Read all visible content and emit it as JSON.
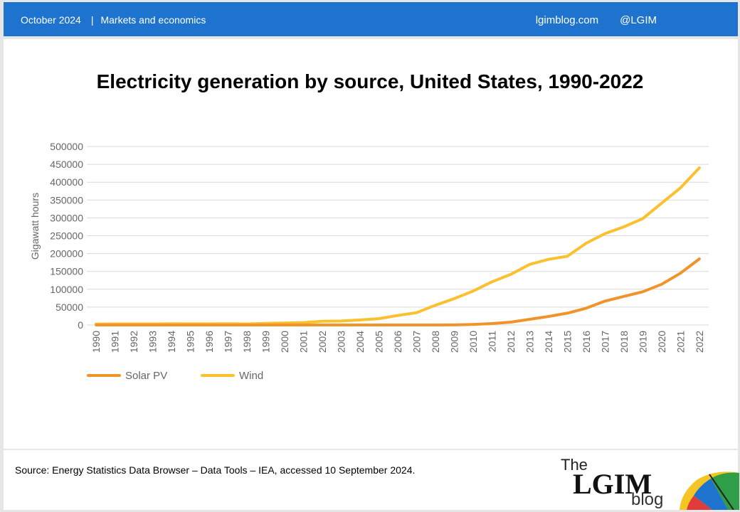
{
  "header": {
    "date": "October 2024",
    "separator": "|",
    "category": "Markets and economics",
    "site": "lgimblog.com",
    "handle": "@LGIM"
  },
  "colors": {
    "header_bg": "#1e73cf",
    "solar": "#f0932b",
    "wind": "#fbc02d",
    "grid": "#d9d9d9",
    "tick_text": "#666666"
  },
  "chart_data": {
    "type": "line",
    "title": "Electricity generation by source, United States, 1990-2022",
    "ylabel": "Gigawatt hours",
    "xlabel": "",
    "ylim": [
      0,
      500000
    ],
    "yticks": [
      0,
      50000,
      100000,
      150000,
      200000,
      250000,
      300000,
      350000,
      400000,
      450000,
      500000
    ],
    "grid": true,
    "legend_position": "bottom-left",
    "categories": [
      "1990",
      "1991",
      "1992",
      "1993",
      "1994",
      "1995",
      "1996",
      "1997",
      "1998",
      "1999",
      "2000",
      "2001",
      "2002",
      "2003",
      "2004",
      "2005",
      "2006",
      "2007",
      "2008",
      "2009",
      "2010",
      "2011",
      "2012",
      "2013",
      "2014",
      "2015",
      "2016",
      "2017",
      "2018",
      "2019",
      "2020",
      "2021",
      "2022"
    ],
    "series": [
      {
        "name": "Solar PV",
        "values": [
          0,
          0,
          0,
          0,
          0,
          0,
          0,
          0,
          0,
          0,
          0,
          0,
          0,
          0,
          0,
          0,
          0,
          0,
          0,
          100,
          1500,
          4000,
          8000,
          16000,
          24000,
          33000,
          47000,
          67000,
          80000,
          93000,
          114000,
          145000,
          185000
        ]
      },
      {
        "name": "Wind",
        "values": [
          2800,
          3000,
          2900,
          3000,
          3400,
          3200,
          3200,
          3300,
          3000,
          4500,
          5600,
          6700,
          10300,
          11200,
          14200,
          17800,
          26600,
          34500,
          55400,
          73900,
          95100,
          120900,
          141900,
          169700,
          183900,
          192500,
          229000,
          256000,
          274900,
          298000,
          341000,
          384000,
          440000
        ]
      }
    ]
  },
  "footer": {
    "source": "Source: Energy Statistics Data Browser – Data Tools – IEA, accessed 10 September 2024.",
    "logo_the": "The",
    "logo_lgim": "LGIM",
    "logo_blog": "blog"
  }
}
